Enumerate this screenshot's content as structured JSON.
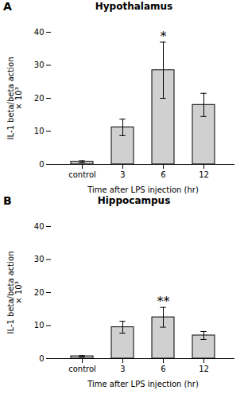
{
  "chart_data": [
    {
      "type": "bar",
      "panel_label": "A",
      "title": "Hypothalamus",
      "categories": [
        "control",
        "3",
        "6",
        "12"
      ],
      "values": [
        0.8,
        11.2,
        28.5,
        18.0
      ],
      "errors": [
        0.3,
        2.5,
        8.5,
        3.5
      ],
      "annotations": [
        {
          "category": "6",
          "text": "*"
        }
      ],
      "xlabel": "Time after LPS injection (hr)",
      "ylabel": "IL-1 beta/beta action\n× 10³",
      "ylim": [
        0,
        40
      ],
      "yticks": [
        0,
        10,
        20,
        30,
        40
      ],
      "color": "#d0d0d0",
      "grid": false
    },
    {
      "type": "bar",
      "panel_label": "B",
      "title": "Hippocampus",
      "categories": [
        "control",
        "3",
        "6",
        "12"
      ],
      "values": [
        0.7,
        9.5,
        12.5,
        7.0
      ],
      "errors": [
        0.2,
        1.8,
        3.0,
        1.2
      ],
      "annotations": [
        {
          "category": "6",
          "text": "**"
        }
      ],
      "xlabel": "Time after LPS injection (hr)",
      "ylabel": "IL-1 beta/beta action\n× 10³",
      "ylim": [
        0,
        40
      ],
      "yticks": [
        0,
        10,
        20,
        30,
        40
      ],
      "color": "#d0d0d0",
      "grid": false
    }
  ]
}
